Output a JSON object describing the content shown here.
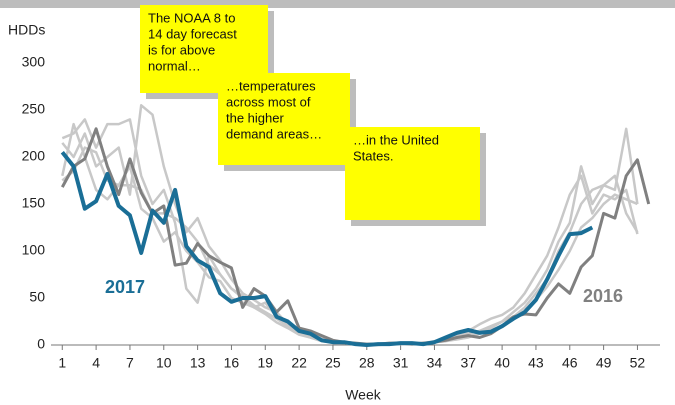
{
  "chart_data": {
    "type": "line",
    "y_label": "HDDs",
    "x_label": "Week",
    "x": [
      1,
      2,
      3,
      4,
      5,
      6,
      7,
      8,
      9,
      10,
      11,
      12,
      13,
      14,
      15,
      16,
      17,
      18,
      19,
      20,
      21,
      22,
      23,
      24,
      25,
      26,
      27,
      28,
      29,
      30,
      31,
      32,
      33,
      34,
      35,
      36,
      37,
      38,
      39,
      40,
      41,
      42,
      43,
      44,
      45,
      46,
      47,
      48,
      49,
      50,
      51,
      52,
      53
    ],
    "xlim": [
      0,
      54
    ],
    "xticks": [
      1,
      4,
      7,
      10,
      13,
      16,
      19,
      22,
      25,
      28,
      31,
      34,
      37,
      40,
      43,
      46,
      49,
      52
    ],
    "ylim": [
      0,
      300
    ],
    "yticks": [
      0,
      50,
      100,
      150,
      200,
      250,
      300
    ],
    "series": [
      {
        "color": "#c8c8c8",
        "values": [
          220,
          225,
          240,
          210,
          235,
          235,
          240,
          180,
          150,
          165,
          130,
          60,
          45,
          95,
          75,
          60,
          50,
          40,
          45,
          30,
          25,
          15,
          12,
          8,
          5,
          3,
          2,
          1,
          1,
          1,
          1,
          2,
          2,
          3,
          5,
          8,
          12,
          15,
          20,
          25,
          35,
          45,
          60,
          80,
          110,
          130,
          190,
          150,
          170,
          165,
          230,
          150,
          null
        ]
      },
      {
        "color": "#c8c8c8",
        "values": [
          215,
          200,
          225,
          190,
          200,
          210,
          160,
          255,
          245,
          190,
          150,
          120,
          135,
          105,
          90,
          70,
          55,
          48,
          40,
          35,
          22,
          15,
          10,
          6,
          4,
          2,
          1,
          1,
          1,
          1,
          2,
          1,
          2,
          4,
          6,
          10,
          15,
          22,
          28,
          32,
          40,
          55,
          75,
          95,
          125,
          160,
          180,
          140,
          160,
          155,
          165,
          118,
          null
        ]
      },
      {
        "color": "#c8c8c8",
        "values": [
          175,
          185,
          210,
          205,
          175,
          170,
          170,
          165,
          140,
          140,
          135,
          125,
          110,
          85,
          75,
          60,
          52,
          42,
          35,
          28,
          20,
          12,
          8,
          5,
          3,
          2,
          1,
          0,
          0,
          1,
          1,
          1,
          2,
          3,
          5,
          6,
          9,
          12,
          18,
          25,
          30,
          40,
          55,
          70,
          100,
          120,
          150,
          165,
          170,
          180,
          140,
          120,
          null
        ]
      },
      {
        "color": "#c8c8c8",
        "values": [
          180,
          235,
          200,
          165,
          155,
          170,
          190,
          145,
          135,
          110,
          120,
          100,
          88,
          72,
          68,
          50,
          45,
          40,
          33,
          24,
          18,
          11,
          8,
          4,
          3,
          2,
          1,
          0,
          1,
          1,
          1,
          1,
          2,
          3,
          4,
          6,
          8,
          12,
          16,
          20,
          28,
          36,
          48,
          62,
          80,
          100,
          125,
          135,
          150,
          160,
          155,
          150,
          null
        ]
      },
      {
        "name": "2016",
        "color": "#808080",
        "values": [
          168,
          190,
          198,
          230,
          190,
          160,
          198,
          162,
          140,
          148,
          85,
          87,
          108,
          95,
          88,
          82,
          40,
          60,
          52,
          35,
          47,
          18,
          15,
          10,
          5,
          3,
          2,
          1,
          1,
          2,
          2,
          1,
          2,
          3,
          5,
          8,
          10,
          8,
          12,
          20,
          30,
          33,
          32,
          50,
          65,
          55,
          83,
          95,
          140,
          135,
          180,
          197,
          150
        ]
      },
      {
        "name": "2017",
        "color": "#1a6e96",
        "values": [
          205,
          190,
          145,
          153,
          182,
          148,
          138,
          98,
          143,
          130,
          165,
          105,
          90,
          83,
          55,
          46,
          50,
          50,
          52,
          30,
          25,
          15,
          12,
          5,
          3,
          3,
          1,
          0,
          1,
          1,
          2,
          2,
          1,
          3,
          8,
          13,
          16,
          13,
          14,
          20,
          28,
          35,
          48,
          70,
          95,
          118,
          119,
          125,
          null,
          null,
          null,
          null,
          null
        ]
      }
    ],
    "annotations": [
      {
        "lines": [
          "The NOAA 8 to",
          "14 day forecast",
          "is for above",
          "normal…"
        ]
      },
      {
        "lines": [
          "…temperatures",
          "across most of",
          "the higher",
          "demand areas…"
        ]
      },
      {
        "lines": [
          "…in the United",
          "States."
        ]
      }
    ]
  }
}
